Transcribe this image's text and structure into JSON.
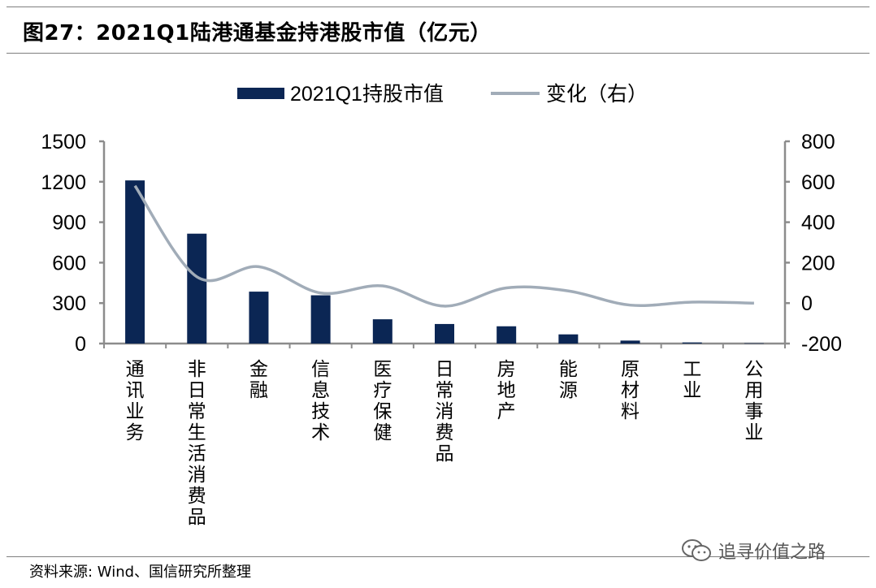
{
  "header": {
    "title": "图27：2021Q1陆港通基金持港股市值（亿元）"
  },
  "footer": {
    "source": "资料来源: Wind、国信研究所整理",
    "watermark": "追寻价值之路",
    "watermark_icon": "wechat-icon"
  },
  "chart_data": {
    "type": "bar",
    "categories": [
      "通讯业务",
      "非日常生活消费品",
      "金融",
      "信息技术",
      "医疗保健",
      "日常消费品",
      "房地产",
      "能源",
      "原材料",
      "工业",
      "公用事业"
    ],
    "series": [
      {
        "name": "2021Q1持股市值",
        "type": "bar",
        "axis": "left",
        "color": "#0b2654",
        "values": [
          1210,
          815,
          385,
          358,
          180,
          145,
          128,
          68,
          22,
          8,
          2
        ]
      },
      {
        "name": "变化（右）",
        "type": "line",
        "axis": "right",
        "color": "#a1acb8",
        "values": [
          580,
          130,
          180,
          50,
          85,
          -15,
          75,
          60,
          -10,
          5,
          0
        ]
      }
    ],
    "yleft": {
      "ticks": [
        "1500",
        "1200",
        "900",
        "600",
        "300",
        "0"
      ],
      "ylim": [
        0,
        1500
      ]
    },
    "yright": {
      "ticks": [
        "800",
        "600",
        "400",
        "200",
        "0",
        "-200"
      ],
      "ylim": [
        -200,
        800
      ]
    },
    "legend_position": "top-center",
    "grid": false,
    "xlabel": "",
    "ylabel": ""
  }
}
